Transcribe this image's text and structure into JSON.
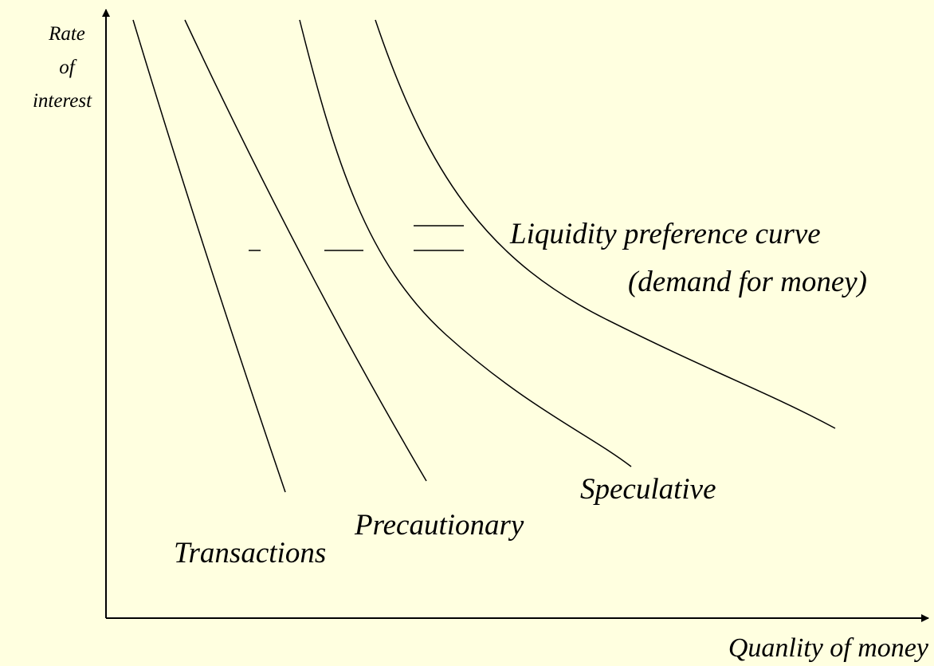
{
  "y_axis_label": [
    "Rate",
    "of",
    "interest"
  ],
  "x_axis_label": "Quanlity of money",
  "total_curve_label": [
    "Liquidity preference curve",
    "(demand for money)"
  ],
  "curves": [
    {
      "label": "Transactions"
    },
    {
      "label": "Precautionary"
    },
    {
      "label": "Speculative"
    }
  ]
}
